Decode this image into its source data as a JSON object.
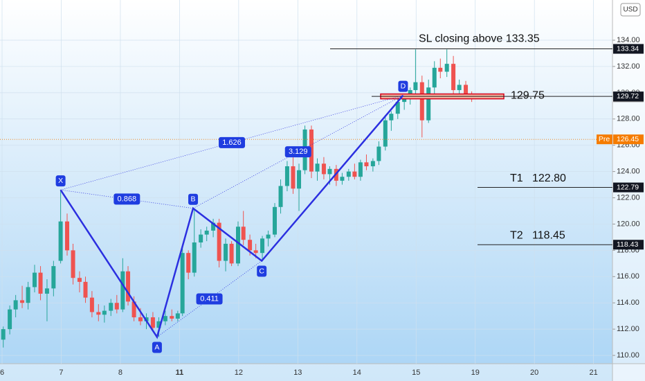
{
  "chart_data": {
    "type": "candlestick",
    "currency": "USD",
    "up_color": "#26a69a",
    "down_color": "#ef5350",
    "pattern_color": "#2b2fe0",
    "grid": true,
    "xlim": [
      -0.035,
      10.32
    ],
    "xticks": [
      {
        "value": 0,
        "label": "6"
      },
      {
        "value": 1,
        "label": "7"
      },
      {
        "value": 2,
        "label": "8"
      },
      {
        "value": 3,
        "label": "11"
      },
      {
        "value": 4,
        "label": "12"
      },
      {
        "value": 5,
        "label": "13"
      },
      {
        "value": 6,
        "label": "14"
      },
      {
        "value": 7,
        "label": "15"
      },
      {
        "value": 8,
        "label": "19"
      },
      {
        "value": 9,
        "label": "20"
      },
      {
        "value": 10,
        "label": "21"
      }
    ],
    "ylim": [
      109.37,
      137.06
    ],
    "yticks": [
      {
        "value": 110,
        "label": "110.00"
      },
      {
        "value": 112,
        "label": "112.00"
      },
      {
        "value": 114,
        "label": "114.00"
      },
      {
        "value": 116,
        "label": "116.00"
      },
      {
        "value": 118,
        "label": "118.00"
      },
      {
        "value": 120,
        "label": "120.00"
      },
      {
        "value": 122,
        "label": "122.00"
      },
      {
        "value": 124,
        "label": "124.00"
      },
      {
        "value": 126,
        "label": "126.00"
      },
      {
        "value": 128,
        "label": "128.00"
      },
      {
        "value": 130,
        "label": "130.00"
      },
      {
        "value": 132,
        "label": "132.00"
      },
      {
        "value": 134,
        "label": "134.00"
      }
    ],
    "x": [
      0.02,
      0.13,
      0.23,
      0.34,
      0.44,
      0.55,
      0.65,
      0.76,
      0.87,
      0.99,
      1.1,
      1.2,
      1.31,
      1.41,
      1.52,
      1.63,
      1.73,
      1.84,
      1.94,
      2.04,
      2.13,
      2.23,
      2.34,
      2.44,
      2.55,
      2.65,
      2.76,
      2.87,
      2.97,
      3.05,
      3.15,
      3.25,
      3.36,
      3.46,
      3.57,
      3.67,
      3.78,
      3.88,
      3.99,
      4.08,
      4.19,
      4.29,
      4.4,
      4.5,
      4.61,
      4.71,
      4.82,
      4.92,
      5.02,
      5.12,
      5.23,
      5.33,
      5.44,
      5.54,
      5.65,
      5.75,
      5.86,
      5.96,
      6.06,
      6.16,
      6.27,
      6.37,
      6.48,
      6.58,
      6.69,
      6.8,
      6.9,
      6.99,
      7.1,
      7.21,
      7.31,
      7.41,
      7.52,
      7.63,
      7.73,
      7.84,
      7.94
    ],
    "open": [
      111.2,
      112.0,
      113.5,
      114.2,
      114.0,
      115.2,
      116.3,
      114.7,
      115.1,
      117.2,
      120.2,
      118.0,
      115.9,
      115.6,
      114.4,
      113.3,
      113.1,
      113.4,
      114.0,
      113.5,
      116.4,
      114.1,
      112.9,
      112.6,
      112.9,
      112.1,
      112.6,
      113.0,
      112.8,
      113.2,
      117.8,
      116.3,
      118.6,
      119.2,
      119.5,
      120.1,
      117.2,
      118.5,
      117.0,
      119.8,
      118.8,
      118.0,
      117.8,
      118.9,
      119.2,
      121.3,
      122.9,
      124.4,
      122.7,
      124.1,
      127.2,
      124.0,
      124.6,
      123.8,
      124.2,
      123.3,
      123.6,
      124.0,
      123.6,
      124.7,
      124.4,
      124.8,
      125.9,
      127.9,
      128.4,
      129.3,
      129.6,
      130.2,
      130.8,
      127.9,
      130.4,
      131.9,
      131.6,
      132.2,
      130.2,
      130.6,
      129.9
    ],
    "high": [
      112.2,
      113.8,
      114.6,
      115.3,
      115.6,
      116.9,
      116.8,
      115.8,
      117.2,
      122.6,
      120.8,
      118.5,
      116.4,
      116.0,
      114.9,
      113.9,
      113.8,
      114.3,
      114.6,
      117.4,
      116.8,
      114.5,
      113.6,
      113.2,
      113.3,
      112.9,
      113.4,
      113.5,
      113.4,
      118.2,
      118.0,
      121.2,
      119.6,
      119.8,
      120.4,
      120.4,
      118.9,
      118.7,
      120.2,
      121.0,
      119.2,
      118.5,
      119.1,
      119.5,
      121.6,
      123.4,
      124.8,
      125.2,
      124.6,
      127.5,
      127.5,
      125.0,
      125.1,
      124.4,
      124.5,
      123.9,
      124.2,
      124.6,
      124.9,
      125.3,
      125.0,
      126.3,
      128.3,
      128.6,
      129.6,
      129.9,
      130.4,
      133.3,
      131.3,
      131.0,
      132.4,
      132.6,
      133.3,
      132.8,
      131.0,
      130.9,
      130.1
    ],
    "low": [
      110.6,
      111.6,
      112.9,
      113.6,
      113.5,
      114.8,
      114.2,
      112.6,
      114.5,
      117.0,
      117.6,
      115.4,
      114.8,
      114.0,
      112.9,
      112.6,
      112.5,
      113.0,
      113.2,
      113.3,
      113.8,
      112.6,
      112.3,
      112.0,
      111.8,
      111.4,
      112.3,
      112.6,
      112.6,
      113.0,
      115.8,
      116.0,
      118.2,
      118.7,
      119.0,
      116.7,
      116.4,
      116.8,
      116.8,
      118.4,
      117.6,
      117.4,
      117.2,
      118.3,
      119.0,
      120.8,
      122.5,
      122.3,
      121.0,
      123.8,
      123.5,
      123.3,
      123.4,
      123.0,
      122.9,
      123.0,
      123.3,
      123.4,
      123.3,
      124.1,
      124.0,
      124.5,
      125.6,
      127.1,
      128.0,
      128.7,
      129.1,
      129.6,
      126.6,
      127.7,
      129.8,
      131.1,
      131.2,
      129.9,
      129.9,
      129.6,
      129.3
    ],
    "close": [
      112.0,
      113.5,
      114.2,
      114.0,
      115.2,
      116.3,
      114.7,
      115.1,
      116.8,
      120.2,
      118.0,
      115.9,
      115.6,
      114.4,
      113.3,
      113.1,
      113.4,
      114.0,
      113.5,
      116.4,
      114.1,
      112.9,
      112.6,
      112.9,
      112.1,
      112.6,
      113.0,
      112.8,
      113.2,
      117.8,
      116.3,
      118.6,
      119.2,
      119.5,
      120.1,
      117.2,
      118.5,
      117.0,
      119.8,
      118.8,
      118.0,
      117.8,
      118.9,
      119.2,
      121.3,
      122.9,
      124.4,
      122.7,
      124.1,
      127.2,
      124.0,
      124.6,
      123.8,
      124.2,
      123.3,
      123.6,
      124.0,
      123.6,
      124.7,
      124.4,
      124.8,
      125.9,
      127.9,
      128.4,
      129.3,
      129.6,
      130.2,
      130.8,
      127.9,
      130.4,
      131.9,
      131.6,
      132.2,
      130.2,
      130.6,
      129.9,
      129.7
    ],
    "pattern": {
      "points": [
        {
          "label": "X",
          "x": 0.99,
          "y": 122.6
        },
        {
          "label": "A",
          "x": 2.62,
          "y": 111.4
        },
        {
          "label": "B",
          "x": 3.23,
          "y": 121.2
        },
        {
          "label": "C",
          "x": 4.39,
          "y": 117.2
        },
        {
          "label": "D",
          "x": 6.78,
          "y": 129.8
        }
      ],
      "ratios": [
        0.868,
        0.411,
        1.626,
        3.129
      ]
    },
    "levels": [
      {
        "annotation": "SL closing above 133.35",
        "value": 133.34
      },
      {
        "annotation": "129.75",
        "value": 129.72
      },
      {
        "annotation": "T1   122.80",
        "value": 122.79
      },
      {
        "annotation": "T2   118.45",
        "value": 118.43
      }
    ],
    "last_price": 129.66,
    "pre_market": {
      "label": "Pre",
      "value": 126.45
    }
  }
}
